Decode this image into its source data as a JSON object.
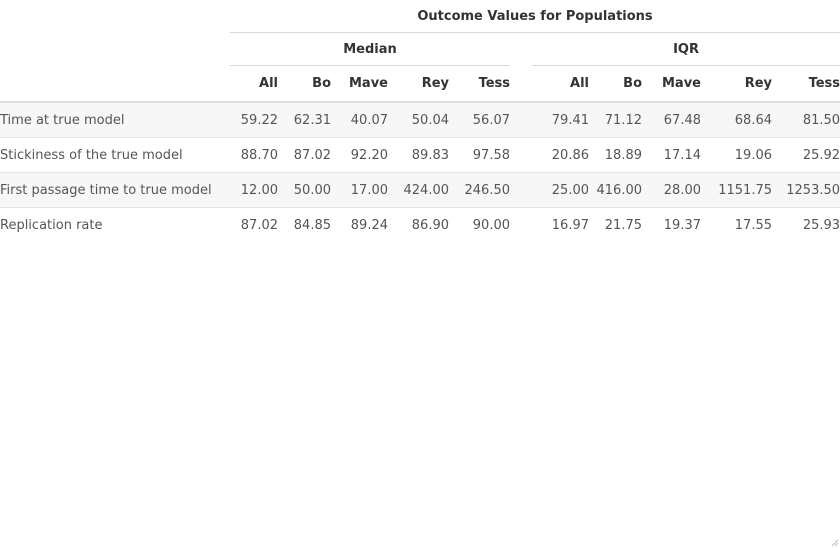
{
  "table": {
    "title": "Outcome Values for Populations",
    "groups": [
      "Median",
      "IQR"
    ],
    "columns": [
      "All",
      "Bo",
      "Mave",
      "Rey",
      "Tess",
      "All",
      "Bo",
      "Mave",
      "Rey",
      "Tess"
    ],
    "rows": [
      {
        "label": "Time at true model",
        "values": [
          "59.22",
          "62.31",
          "40.07",
          "50.04",
          "56.07",
          "79.41",
          "71.12",
          "67.48",
          "68.64",
          "81.50"
        ]
      },
      {
        "label": "Stickiness of the true model",
        "values": [
          "88.70",
          "87.02",
          "92.20",
          "89.83",
          "97.58",
          "20.86",
          "18.89",
          "17.14",
          "19.06",
          "25.92"
        ]
      },
      {
        "label": "First passage time to true model",
        "values": [
          "12.00",
          "50.00",
          "17.00",
          "424.00",
          "246.50",
          "25.00",
          "416.00",
          "28.00",
          "1151.75",
          "1253.50"
        ]
      },
      {
        "label": "Replication rate",
        "values": [
          "87.02",
          "84.85",
          "89.24",
          "86.90",
          "90.00",
          "16.97",
          "21.75",
          "19.37",
          "17.55",
          "25.93"
        ]
      }
    ]
  }
}
